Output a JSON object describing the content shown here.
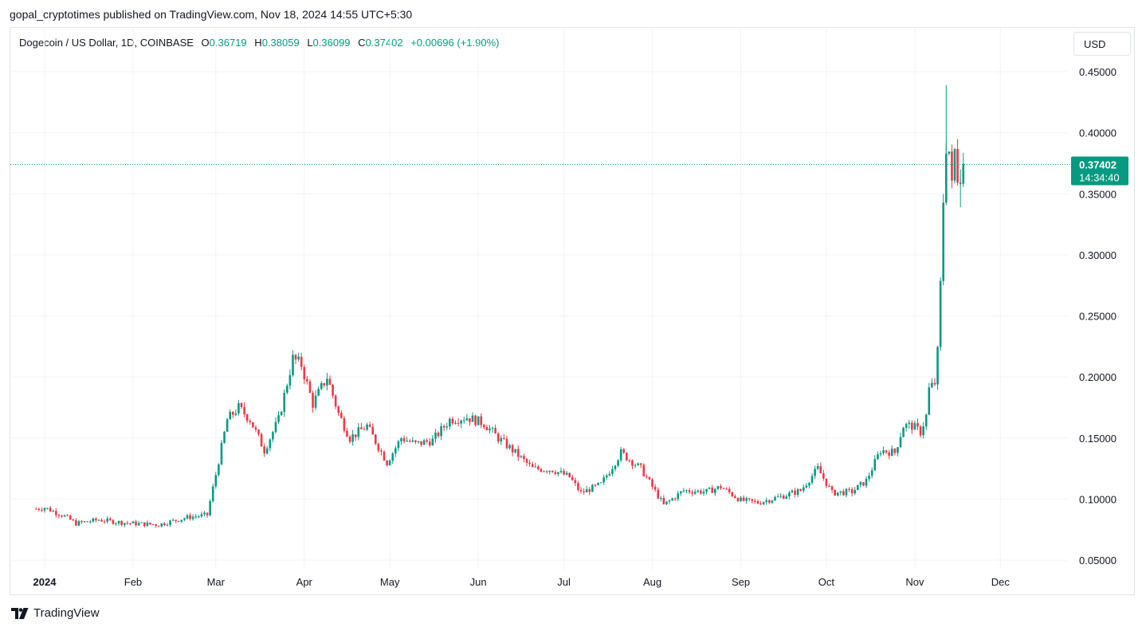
{
  "caption": "gopal_cryptotimes published on TradingView.com, Nov 18, 2024 14:55 UTC+5:30",
  "legend": {
    "instrument": "Dogecoin / US Dollar, 1D, COINBASE",
    "o_label": "O",
    "o_value": "0.36719",
    "h_label": "H",
    "h_value": "0.38059",
    "l_label": "L",
    "l_value": "0.36099",
    "c_label": "C",
    "c_value": "0.37402",
    "change": "+0.00696 (+1.90%)"
  },
  "currency_button": "USD",
  "price_tag": {
    "price": "0.37402",
    "countdown": "14:34:40"
  },
  "footer": {
    "brand": "TradingView"
  },
  "colors": {
    "up": "#089981",
    "down": "#f23645",
    "grid": "#f0f3fa",
    "text": "#131722"
  },
  "chart_data": {
    "type": "candlestick",
    "title": "Dogecoin / US Dollar, 1D, COINBASE",
    "x_tick_labels": [
      "2024",
      "Feb",
      "Mar",
      "Apr",
      "May",
      "Jun",
      "Jul",
      "Aug",
      "Sep",
      "Oct",
      "Nov",
      "Dec"
    ],
    "y_tick_labels": [
      "0.45000",
      "0.40000",
      "0.35000",
      "0.30000",
      "0.25000",
      "0.20000",
      "0.15000",
      "0.10000",
      "0.05000"
    ],
    "ylim": [
      0.045,
      0.455
    ],
    "grid": true,
    "last_price": 0.37402,
    "close_series": [
      {
        "date": "2023-12-29",
        "close": 0.092
      },
      {
        "date": "2024-01-01",
        "close": 0.093
      },
      {
        "date": "2024-01-08",
        "close": 0.086
      },
      {
        "date": "2024-01-12",
        "close": 0.08
      },
      {
        "date": "2024-01-20",
        "close": 0.083
      },
      {
        "date": "2024-01-27",
        "close": 0.081
      },
      {
        "date": "2024-02-01",
        "close": 0.08
      },
      {
        "date": "2024-02-10",
        "close": 0.079
      },
      {
        "date": "2024-02-20",
        "close": 0.085
      },
      {
        "date": "2024-02-27",
        "close": 0.087
      },
      {
        "date": "2024-03-01",
        "close": 0.12
      },
      {
        "date": "2024-03-05",
        "close": 0.165
      },
      {
        "date": "2024-03-09",
        "close": 0.175
      },
      {
        "date": "2024-03-13",
        "close": 0.165
      },
      {
        "date": "2024-03-18",
        "close": 0.14
      },
      {
        "date": "2024-03-23",
        "close": 0.165
      },
      {
        "date": "2024-03-28",
        "close": 0.215
      },
      {
        "date": "2024-03-31",
        "close": 0.21
      },
      {
        "date": "2024-04-04",
        "close": 0.178
      },
      {
        "date": "2024-04-09",
        "close": 0.2
      },
      {
        "date": "2024-04-13",
        "close": 0.17
      },
      {
        "date": "2024-04-17",
        "close": 0.15
      },
      {
        "date": "2024-04-23",
        "close": 0.16
      },
      {
        "date": "2024-04-30",
        "close": 0.13
      },
      {
        "date": "2024-05-05",
        "close": 0.15
      },
      {
        "date": "2024-05-10",
        "close": 0.145
      },
      {
        "date": "2024-05-16",
        "close": 0.148
      },
      {
        "date": "2024-05-22",
        "close": 0.165
      },
      {
        "date": "2024-05-28",
        "close": 0.167
      },
      {
        "date": "2024-06-03",
        "close": 0.162
      },
      {
        "date": "2024-06-08",
        "close": 0.15
      },
      {
        "date": "2024-06-13",
        "close": 0.14
      },
      {
        "date": "2024-06-20",
        "close": 0.125
      },
      {
        "date": "2024-06-27",
        "close": 0.124
      },
      {
        "date": "2024-07-03",
        "close": 0.118
      },
      {
        "date": "2024-07-07",
        "close": 0.105
      },
      {
        "date": "2024-07-14",
        "close": 0.112
      },
      {
        "date": "2024-07-21",
        "close": 0.138
      },
      {
        "date": "2024-07-28",
        "close": 0.125
      },
      {
        "date": "2024-08-05",
        "close": 0.095
      },
      {
        "date": "2024-08-12",
        "close": 0.107
      },
      {
        "date": "2024-08-20",
        "close": 0.106
      },
      {
        "date": "2024-08-25",
        "close": 0.11
      },
      {
        "date": "2024-09-01",
        "close": 0.099
      },
      {
        "date": "2024-09-07",
        "close": 0.097
      },
      {
        "date": "2024-09-15",
        "close": 0.102
      },
      {
        "date": "2024-09-22",
        "close": 0.107
      },
      {
        "date": "2024-09-28",
        "close": 0.125
      },
      {
        "date": "2024-10-03",
        "close": 0.105
      },
      {
        "date": "2024-10-10",
        "close": 0.106
      },
      {
        "date": "2024-10-15",
        "close": 0.115
      },
      {
        "date": "2024-10-20",
        "close": 0.14
      },
      {
        "date": "2024-10-25",
        "close": 0.138
      },
      {
        "date": "2024-10-28",
        "close": 0.16
      },
      {
        "date": "2024-10-31",
        "close": 0.16
      },
      {
        "date": "2024-11-03",
        "close": 0.155
      },
      {
        "date": "2024-11-05",
        "close": 0.168
      },
      {
        "date": "2024-11-06",
        "close": 0.19
      },
      {
        "date": "2024-11-08",
        "close": 0.195
      },
      {
        "date": "2024-11-09",
        "close": 0.22
      },
      {
        "date": "2024-11-10",
        "close": 0.275
      },
      {
        "date": "2024-11-11",
        "close": 0.345
      },
      {
        "date": "2024-11-12",
        "close": 0.39
      },
      {
        "date": "2024-11-13",
        "close": 0.385
      },
      {
        "date": "2024-11-14",
        "close": 0.355
      },
      {
        "date": "2024-11-15",
        "close": 0.385
      },
      {
        "date": "2024-11-16",
        "close": 0.365
      },
      {
        "date": "2024-11-17",
        "close": 0.367
      },
      {
        "date": "2024-11-18",
        "close": 0.374
      }
    ],
    "annotations": {
      "ath_region_high": 0.439,
      "recent_low": 0.339
    }
  }
}
